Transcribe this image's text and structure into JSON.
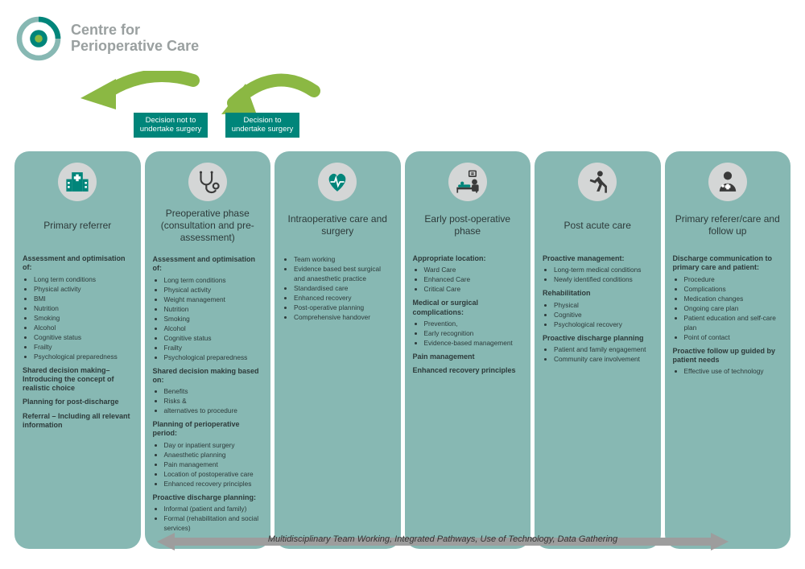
{
  "colors": {
    "teal_dark": "#00857a",
    "teal_light": "#87b8b3",
    "logo_gray": "#9aa0a0",
    "green_arrow": "#8bb843",
    "icon_bg": "#d4d6d6",
    "text": "#2d3a3a",
    "bottom_arrow": "#9d9d9d"
  },
  "logo": {
    "line1": "Centre for",
    "line2": "Perioperative Care"
  },
  "decisions": {
    "left": "Decision not to undertake  surgery",
    "right": "Decision to undertake surgery"
  },
  "columns": [
    {
      "icon": "hospital",
      "title": "Primary referrer",
      "sections": [
        {
          "head": "Assessment and optimisation of:",
          "items": [
            "Long term conditions",
            "Physical activity",
            "BMI",
            "Nutrition",
            "Smoking",
            "Alcohol",
            "Cognitive status",
            "Frailty",
            "Psychological preparedness"
          ]
        },
        {
          "head": "Shared decision making– Introducing the concept of realistic choice",
          "items": []
        },
        {
          "head": "Planning for post-discharge",
          "items": []
        },
        {
          "head": "Referral – Including all relevant information",
          "items": []
        }
      ]
    },
    {
      "icon": "stethoscope",
      "title": "Preoperative phase (consultation and pre-assessment)",
      "sections": [
        {
          "head": "Assessment and optimisation of:",
          "items": [
            "Long term conditions",
            "Physical activity",
            "Weight management",
            "Nutrition",
            "Smoking",
            "Alcohol",
            "Cognitive status",
            "Frailty",
            "Psychological preparedness"
          ]
        },
        {
          "head": "Shared decision making based on:",
          "items": [
            "Benefits",
            "Risks &",
            "alternatives to procedure"
          ]
        },
        {
          "head": "Planning of perioperative period:",
          "items": [
            "Day or inpatient surgery",
            "Anaesthetic planning",
            "Pain management",
            "Location of postoperative care",
            "Enhanced recovery principles"
          ]
        },
        {
          "head": "Proactive discharge planning:",
          "items": [
            "Informal (patient and family)",
            "Formal (rehabilitation and social services)"
          ]
        }
      ]
    },
    {
      "icon": "heart",
      "title": "Intraoperative care and surgery",
      "sections": [
        {
          "head": "",
          "items": [
            "Team working",
            "Evidence based best surgical and anaesthetic practice",
            "Standardised care",
            "Enhanced recovery",
            "Post-operative planning",
            "Comprehensive handover"
          ]
        }
      ]
    },
    {
      "icon": "bed",
      "title": "Early post-operative phase",
      "sections": [
        {
          "head": "Appropriate location:",
          "items": [
            "Ward Care",
            "Enhanced Care",
            "Critical Care"
          ]
        },
        {
          "head": "Medical or surgical complications:",
          "items": [
            "Prevention,",
            "Early recognition",
            "Evidence-based management"
          ]
        },
        {
          "head": "Pain management",
          "items": []
        },
        {
          "head": "Enhanced recovery principles",
          "items": []
        }
      ]
    },
    {
      "icon": "runner",
      "title": "Post acute care",
      "sections": [
        {
          "head": "Proactive management:",
          "items": [
            "Long-term medical conditions",
            "Newly identified conditions"
          ]
        },
        {
          "head": "Rehabilitation",
          "items": [
            "Physical",
            "Cognitive",
            "Psychological recovery"
          ]
        },
        {
          "head": "Proactive discharge planning",
          "items": [
            "Patient and family engagement",
            "Community care involvement"
          ]
        }
      ]
    },
    {
      "icon": "doctor",
      "title": "Primary referer/care and follow up",
      "sections": [
        {
          "head": "Discharge communication to primary care and patient:",
          "items": [
            "Procedure",
            "Complications",
            "Medication changes",
            "Ongoing care plan",
            "Patient education and self-care plan",
            "Point of contact"
          ]
        },
        {
          "head": "Proactive follow up guided by patient needs",
          "items": [
            "Effective use of technology"
          ]
        }
      ]
    }
  ],
  "bottom_text": "Multidisciplinary Team Working, Integrated Pathways, Use of Technology, Data Gathering"
}
